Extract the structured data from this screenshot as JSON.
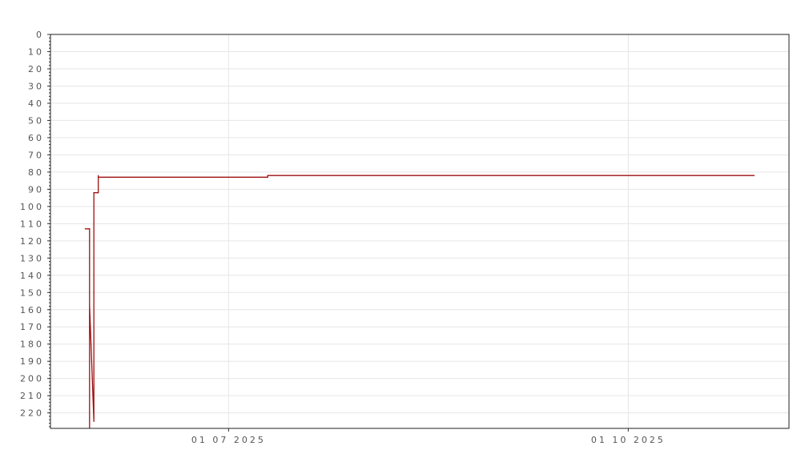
{
  "chart_data": {
    "type": "line",
    "title": "",
    "xlabel": "",
    "ylabel": "",
    "y_inverted": true,
    "ylim": [
      0,
      229
    ],
    "xlim": [
      "2025-05-21",
      "2025-11-07"
    ],
    "yticks": [
      0,
      10,
      20,
      30,
      40,
      50,
      60,
      70,
      80,
      90,
      100,
      110,
      120,
      130,
      140,
      150,
      160,
      170,
      180,
      190,
      200,
      210,
      220
    ],
    "xticks": [
      {
        "date": "2025-07-01",
        "label": "01 07 2025"
      },
      {
        "date": "2025-10-01",
        "label": "01 10 2025"
      }
    ],
    "grid": true,
    "series": [
      {
        "color": "#a01010",
        "points": [
          {
            "x": "2025-05-29",
            "y": 113
          },
          {
            "x": "2025-05-30",
            "y": 113
          },
          {
            "x": "2025-05-30",
            "y": 229
          },
          {
            "x": "2025-05-30",
            "y": 157
          },
          {
            "x": "2025-05-31",
            "y": 225
          },
          {
            "x": "2025-05-31",
            "y": 92
          },
          {
            "x": "2025-06-01",
            "y": 92
          },
          {
            "x": "2025-06-01",
            "y": 82
          },
          {
            "x": "2025-06-01",
            "y": 83
          },
          {
            "x": "2025-07-10",
            "y": 83
          },
          {
            "x": "2025-07-10",
            "y": 82
          },
          {
            "x": "2025-10-30",
            "y": 82
          }
        ]
      }
    ]
  }
}
